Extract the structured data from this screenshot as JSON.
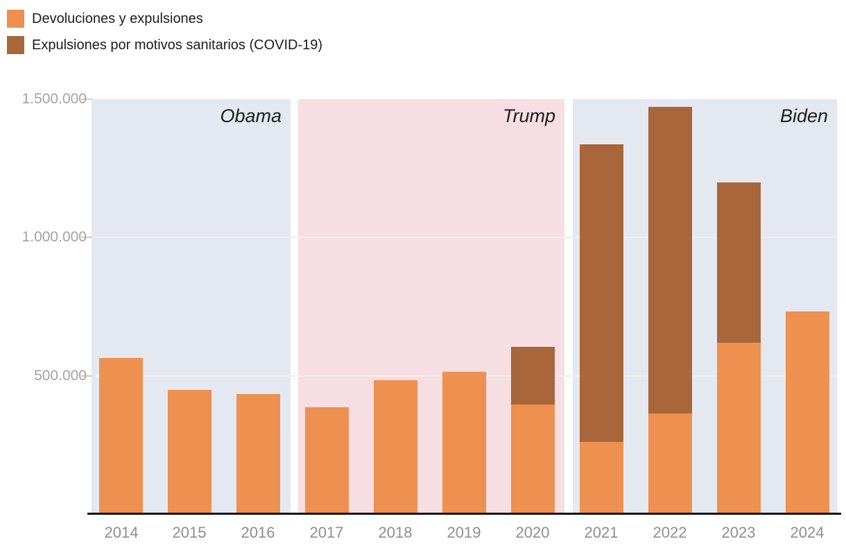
{
  "legend": {
    "items": [
      {
        "label": "Devoluciones y expulsiones",
        "color": "#ee9050"
      },
      {
        "label": "Expulsiones por motivos sanitarios (COVID-19)",
        "color": "#a8663a"
      }
    ]
  },
  "chart_data": {
    "type": "bar",
    "stacked": true,
    "title": "",
    "xlabel": "",
    "ylabel": "",
    "grid": true,
    "legend_position": "top-left",
    "ylim": [
      0,
      1500000
    ],
    "categories": [
      "2014",
      "2015",
      "2016",
      "2017",
      "2018",
      "2019",
      "2020",
      "2021",
      "2022",
      "2023",
      "2024"
    ],
    "series": [
      {
        "name": "Devoluciones y expulsiones",
        "color": "#ee9050",
        "values": [
          565000,
          450000,
          435000,
          387500,
          485000,
          515000,
          397500,
          260000,
          362500,
          620000,
          732500
        ]
      },
      {
        "name": "Expulsiones por motivos sanitarios (COVID-19)",
        "color": "#a8663a",
        "values": [
          0,
          0,
          0,
          0,
          0,
          0,
          207500,
          1075000,
          1107500,
          580000,
          0
        ]
      }
    ],
    "yticks": [
      {
        "value": 500000,
        "label": "500.000"
      },
      {
        "value": 1000000,
        "label": "1.000.000"
      },
      {
        "value": 1500000,
        "label": "1.500.000"
      }
    ],
    "regions": [
      {
        "label": "Obama",
        "from": "2014",
        "to": "2016",
        "color": "#e4e8f1"
      },
      {
        "label": "Trump",
        "from": "2017",
        "to": "2020",
        "color": "#f6dee2"
      },
      {
        "label": "Biden",
        "from": "2021",
        "to": "2024",
        "color": "#e4e8f1"
      }
    ]
  }
}
